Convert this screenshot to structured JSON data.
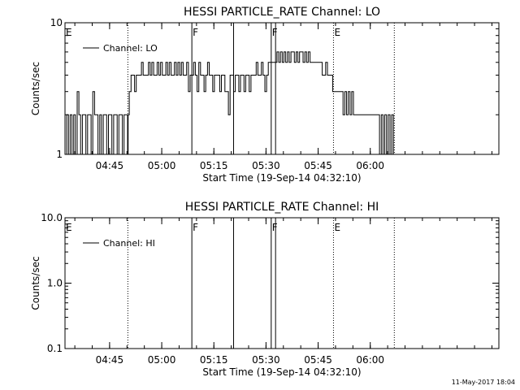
{
  "timestamp": "11-May-2017 18:04",
  "chart_data": [
    {
      "type": "line",
      "title": "HESSI PARTICLE_RATE Channel: LO",
      "xlabel": "Start Time (19-Sep-14 04:32:10)",
      "ylabel": "Counts/sec",
      "y_scale": "log",
      "ylim": [
        1,
        10
      ],
      "y_ticks": [
        {
          "value": 1,
          "label": "1"
        },
        {
          "value": 10,
          "label": "10"
        }
      ],
      "x_ticks": [
        {
          "value": "04:45",
          "label": "04:45"
        },
        {
          "value": "05:00",
          "label": "05:00"
        },
        {
          "value": "05:15",
          "label": "05:15"
        },
        {
          "value": "05:30",
          "label": "05:30"
        },
        {
          "value": "05:45",
          "label": "05:45"
        },
        {
          "value": "06:00",
          "label": "06:00"
        }
      ],
      "xlim": [
        "04:32:10",
        "06:37:00"
      ],
      "legend": {
        "placement": "top-left"
      },
      "markers": [
        {
          "time": "04:50:15",
          "label": "",
          "style": "dotted"
        },
        {
          "time": "05:08:40",
          "label": "F",
          "style": "solid"
        },
        {
          "time": "05:20:40",
          "label": "",
          "style": "solid"
        },
        {
          "time": "05:31:30",
          "label": "F",
          "style": "solid"
        },
        {
          "time": "05:32:45",
          "label": "",
          "style": "solid"
        },
        {
          "time": "05:49:25",
          "label": "E",
          "style": "dotted"
        },
        {
          "time": "06:06:55",
          "label": "",
          "style": "dotted"
        }
      ],
      "edge_labels": [
        {
          "side": "left",
          "label": "E"
        }
      ],
      "series": [
        {
          "name": "Channel: LO",
          "points": [
            [
              "04:32:10",
              1
            ],
            [
              "04:32:40",
              2
            ],
            [
              "04:33:10",
              1
            ],
            [
              "04:33:40",
              2
            ],
            [
              "04:34:10",
              1
            ],
            [
              "04:34:40",
              2
            ],
            [
              "04:35:10",
              1
            ],
            [
              "04:35:40",
              3
            ],
            [
              "04:36:10",
              2
            ],
            [
              "04:36:40",
              1
            ],
            [
              "04:37:10",
              2
            ],
            [
              "04:37:40",
              2
            ],
            [
              "04:38:10",
              1
            ],
            [
              "04:38:40",
              2
            ],
            [
              "04:39:10",
              2
            ],
            [
              "04:39:40",
              1
            ],
            [
              "04:40:10",
              3
            ],
            [
              "04:40:40",
              2
            ],
            [
              "04:41:10",
              2
            ],
            [
              "04:41:40",
              1
            ],
            [
              "04:42:10",
              2
            ],
            [
              "04:42:40",
              1
            ],
            [
              "04:43:10",
              2
            ],
            [
              "04:43:40",
              2
            ],
            [
              "04:44:10",
              1
            ],
            [
              "04:44:40",
              2
            ],
            [
              "04:45:10",
              2
            ],
            [
              "04:45:40",
              1
            ],
            [
              "04:46:10",
              2
            ],
            [
              "04:46:40",
              2
            ],
            [
              "04:47:10",
              1
            ],
            [
              "04:47:40",
              2
            ],
            [
              "04:48:10",
              2
            ],
            [
              "04:48:40",
              1
            ],
            [
              "04:49:10",
              2
            ],
            [
              "04:49:40",
              2
            ],
            [
              "04:50:10",
              1
            ],
            [
              "04:50:20",
              2
            ],
            [
              "04:50:40",
              3
            ],
            [
              "04:51:10",
              4
            ],
            [
              "04:51:40",
              4
            ],
            [
              "04:52:10",
              3
            ],
            [
              "04:52:40",
              4
            ],
            [
              "04:53:10",
              4
            ],
            [
              "04:53:40",
              4
            ],
            [
              "04:54:10",
              5
            ],
            [
              "04:54:40",
              4
            ],
            [
              "04:55:10",
              4
            ],
            [
              "04:55:40",
              4
            ],
            [
              "04:56:10",
              5
            ],
            [
              "04:56:40",
              4
            ],
            [
              "04:57:10",
              5
            ],
            [
              "04:57:40",
              4
            ],
            [
              "04:58:10",
              4
            ],
            [
              "04:58:40",
              5
            ],
            [
              "04:59:10",
              4
            ],
            [
              "04:59:40",
              5
            ],
            [
              "05:00:10",
              4
            ],
            [
              "05:00:40",
              4
            ],
            [
              "05:01:10",
              5
            ],
            [
              "05:01:40",
              4
            ],
            [
              "05:02:10",
              5
            ],
            [
              "05:02:40",
              4
            ],
            [
              "05:03:10",
              4
            ],
            [
              "05:03:40",
              5
            ],
            [
              "05:04:10",
              4
            ],
            [
              "05:04:40",
              5
            ],
            [
              "05:05:10",
              4
            ],
            [
              "05:05:40",
              5
            ],
            [
              "05:06:10",
              4
            ],
            [
              "05:06:40",
              4
            ],
            [
              "05:07:10",
              5
            ],
            [
              "05:07:40",
              3
            ],
            [
              "05:08:10",
              4
            ],
            [
              "05:08:40",
              4
            ],
            [
              "05:09:10",
              5
            ],
            [
              "05:09:40",
              4
            ],
            [
              "05:10:10",
              3
            ],
            [
              "05:10:40",
              5
            ],
            [
              "05:11:10",
              4
            ],
            [
              "05:11:40",
              4
            ],
            [
              "05:12:10",
              3
            ],
            [
              "05:12:40",
              4
            ],
            [
              "05:13:10",
              5
            ],
            [
              "05:13:40",
              4
            ],
            [
              "05:14:10",
              4
            ],
            [
              "05:14:40",
              3
            ],
            [
              "05:15:10",
              4
            ],
            [
              "05:15:40",
              4
            ],
            [
              "05:16:10",
              4
            ],
            [
              "05:16:40",
              3
            ],
            [
              "05:17:10",
              4
            ],
            [
              "05:17:40",
              4
            ],
            [
              "05:18:10",
              3
            ],
            [
              "05:18:40",
              3
            ],
            [
              "05:19:10",
              2
            ],
            [
              "05:19:40",
              4
            ],
            [
              "05:20:10",
              4
            ],
            [
              "05:20:40",
              3
            ],
            [
              "05:21:10",
              4
            ],
            [
              "05:21:40",
              4
            ],
            [
              "05:22:10",
              3
            ],
            [
              "05:22:40",
              4
            ],
            [
              "05:23:10",
              4
            ],
            [
              "05:23:40",
              3
            ],
            [
              "05:24:10",
              4
            ],
            [
              "05:24:40",
              4
            ],
            [
              "05:25:10",
              3
            ],
            [
              "05:25:40",
              4
            ],
            [
              "05:26:10",
              4
            ],
            [
              "05:26:40",
              4
            ],
            [
              "05:27:10",
              5
            ],
            [
              "05:27:40",
              4
            ],
            [
              "05:28:10",
              4
            ],
            [
              "05:28:40",
              5
            ],
            [
              "05:29:10",
              4
            ],
            [
              "05:29:40",
              3
            ],
            [
              "05:30:10",
              4
            ],
            [
              "05:30:40",
              5
            ],
            [
              "05:31:10",
              5
            ],
            [
              "05:31:40",
              5
            ],
            [
              "05:32:10",
              5
            ],
            [
              "05:32:40",
              5
            ],
            [
              "05:33:10",
              6
            ],
            [
              "05:33:40",
              5
            ],
            [
              "05:34:10",
              6
            ],
            [
              "05:34:40",
              5
            ],
            [
              "05:35:10",
              6
            ],
            [
              "05:35:40",
              5
            ],
            [
              "05:36:10",
              6
            ],
            [
              "05:36:40",
              5
            ],
            [
              "05:37:10",
              6
            ],
            [
              "05:37:40",
              6
            ],
            [
              "05:38:10",
              5
            ],
            [
              "05:38:40",
              6
            ],
            [
              "05:39:10",
              5
            ],
            [
              "05:39:40",
              6
            ],
            [
              "05:40:10",
              6
            ],
            [
              "05:40:40",
              5
            ],
            [
              "05:41:10",
              6
            ],
            [
              "05:41:40",
              5
            ],
            [
              "05:42:10",
              6
            ],
            [
              "05:42:40",
              5
            ],
            [
              "05:43:10",
              5
            ],
            [
              "05:43:40",
              5
            ],
            [
              "05:44:10",
              5
            ],
            [
              "05:44:40",
              5
            ],
            [
              "05:45:10",
              5
            ],
            [
              "05:45:40",
              5
            ],
            [
              "05:46:10",
              4
            ],
            [
              "05:46:40",
              4
            ],
            [
              "05:47:10",
              5
            ],
            [
              "05:47:40",
              4
            ],
            [
              "05:48:10",
              4
            ],
            [
              "05:48:40",
              4
            ],
            [
              "05:49:10",
              3
            ],
            [
              "05:49:40",
              3
            ],
            [
              "05:50:10",
              3
            ],
            [
              "05:50:40",
              3
            ],
            [
              "05:51:10",
              3
            ],
            [
              "05:51:40",
              3
            ],
            [
              "05:52:10",
              2
            ],
            [
              "05:52:40",
              3
            ],
            [
              "05:53:10",
              2
            ],
            [
              "05:53:40",
              3
            ],
            [
              "05:54:10",
              2
            ],
            [
              "05:54:40",
              3
            ],
            [
              "05:55:10",
              2
            ],
            [
              "05:55:40",
              2
            ],
            [
              "05:56:10",
              2
            ],
            [
              "05:56:40",
              2
            ],
            [
              "05:57:10",
              2
            ],
            [
              "05:57:40",
              2
            ],
            [
              "05:58:10",
              2
            ],
            [
              "05:58:40",
              2
            ],
            [
              "05:59:10",
              2
            ],
            [
              "05:59:40",
              2
            ],
            [
              "06:00:10",
              2
            ],
            [
              "06:00:40",
              2
            ],
            [
              "06:01:10",
              2
            ],
            [
              "06:01:40",
              2
            ],
            [
              "06:02:10",
              2
            ],
            [
              "06:02:40",
              1
            ],
            [
              "06:03:10",
              2
            ],
            [
              "06:03:40",
              1
            ],
            [
              "06:04:10",
              2
            ],
            [
              "06:04:40",
              1
            ],
            [
              "06:05:10",
              2
            ],
            [
              "06:05:40",
              1
            ],
            [
              "06:06:10",
              2
            ],
            [
              "06:06:40",
              1
            ]
          ]
        }
      ]
    },
    {
      "type": "line",
      "title": "HESSI PARTICLE_RATE Channel: HI",
      "xlabel": "Start Time (19-Sep-14 04:32:10)",
      "ylabel": "Counts/sec",
      "y_scale": "log",
      "ylim": [
        0.1,
        10
      ],
      "y_ticks": [
        {
          "value": 0.1,
          "label": "0.1"
        },
        {
          "value": 1,
          "label": "1.0"
        },
        {
          "value": 10,
          "label": "10.0"
        }
      ],
      "x_ticks": [
        {
          "value": "04:45",
          "label": "04:45"
        },
        {
          "value": "05:00",
          "label": "05:00"
        },
        {
          "value": "05:15",
          "label": "05:15"
        },
        {
          "value": "05:30",
          "label": "05:30"
        },
        {
          "value": "05:45",
          "label": "05:45"
        },
        {
          "value": "06:00",
          "label": "06:00"
        }
      ],
      "xlim": [
        "04:32:10",
        "06:37:00"
      ],
      "legend": {
        "placement": "top-left"
      },
      "markers": [
        {
          "time": "04:50:15",
          "label": "",
          "style": "dotted"
        },
        {
          "time": "05:08:40",
          "label": "F",
          "style": "solid"
        },
        {
          "time": "05:20:40",
          "label": "",
          "style": "solid"
        },
        {
          "time": "05:31:30",
          "label": "F",
          "style": "solid"
        },
        {
          "time": "05:32:45",
          "label": "",
          "style": "solid"
        },
        {
          "time": "05:49:25",
          "label": "E",
          "style": "dotted"
        },
        {
          "time": "06:06:55",
          "label": "",
          "style": "dotted"
        }
      ],
      "edge_labels": [
        {
          "side": "left",
          "label": "E"
        }
      ],
      "series": [
        {
          "name": "Channel: HI",
          "points": []
        }
      ]
    }
  ]
}
